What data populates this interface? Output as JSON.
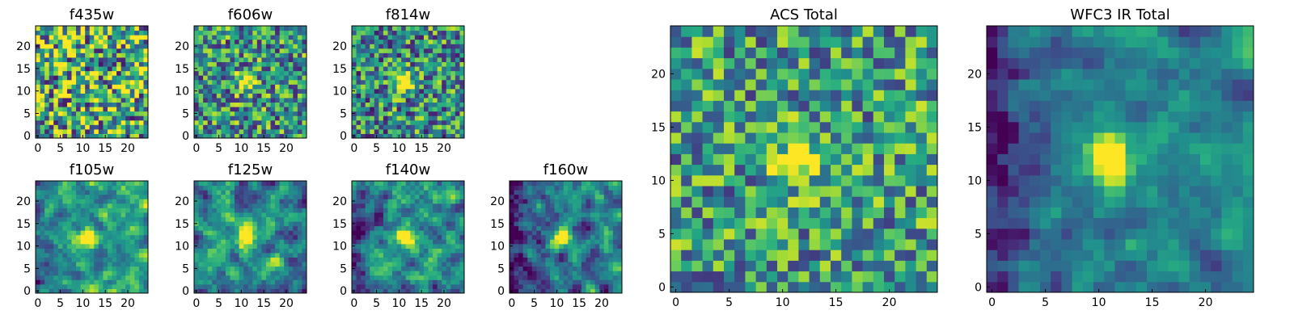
{
  "chart_data": [
    {
      "type": "heatmap",
      "title": "f435w",
      "colormap": "viridis",
      "grid": 25,
      "hotspot": 0.0,
      "noise": 0.55,
      "smooth": 0,
      "base": 0.62,
      "dark_left": 0.0,
      "seed": 11,
      "xticks": [
        "0",
        "5",
        "10",
        "15",
        "20"
      ],
      "yticks": [
        "0",
        "5",
        "10",
        "15",
        "20"
      ],
      "xlim": [
        0,
        25
      ],
      "ylim": [
        0,
        25
      ],
      "hotspot_center": [
        12,
        12
      ]
    },
    {
      "type": "heatmap",
      "title": "f606w",
      "colormap": "viridis",
      "grid": 25,
      "hotspot": 0.45,
      "noise": 0.42,
      "smooth": 0,
      "base": 0.52,
      "dark_left": 0.0,
      "seed": 23,
      "xticks": [
        "0",
        "5",
        "10",
        "15",
        "20"
      ],
      "yticks": [
        "0",
        "5",
        "10",
        "15",
        "20"
      ],
      "xlim": [
        0,
        25
      ],
      "ylim": [
        0,
        25
      ],
      "hotspot_center": [
        11,
        12
      ]
    },
    {
      "type": "heatmap",
      "title": "f814w",
      "colormap": "viridis",
      "grid": 25,
      "hotspot": 0.55,
      "noise": 0.42,
      "smooth": 0,
      "base": 0.5,
      "dark_left": 0.05,
      "seed": 37,
      "xticks": [
        "0",
        "5",
        "10",
        "15",
        "20"
      ],
      "yticks": [
        "0",
        "5",
        "10",
        "15",
        "20"
      ],
      "xlim": [
        0,
        25
      ],
      "ylim": [
        0,
        25
      ],
      "hotspot_center": [
        11,
        12
      ]
    },
    {
      "type": "heatmap",
      "title": "f105w",
      "colormap": "viridis",
      "grid": 25,
      "hotspot": 0.5,
      "noise": 0.3,
      "smooth": 1,
      "base": 0.55,
      "dark_left": 0.15,
      "seed": 41,
      "xticks": [
        "0",
        "5",
        "10",
        "15",
        "20"
      ],
      "yticks": [
        "0",
        "5",
        "10",
        "15",
        "20"
      ],
      "xlim": [
        0,
        25
      ],
      "ylim": [
        0,
        25
      ],
      "hotspot_center": [
        11,
        12
      ]
    },
    {
      "type": "heatmap",
      "title": "f125w",
      "colormap": "viridis",
      "grid": 25,
      "hotspot": 0.5,
      "noise": 0.32,
      "smooth": 1,
      "base": 0.5,
      "dark_left": 0.1,
      "seed": 53,
      "xticks": [
        "0",
        "5",
        "10",
        "15",
        "20"
      ],
      "yticks": [
        "0",
        "5",
        "10",
        "15",
        "20"
      ],
      "xlim": [
        0,
        25
      ],
      "ylim": [
        0,
        25
      ],
      "hotspot_center": [
        11,
        12
      ]
    },
    {
      "type": "heatmap",
      "title": "f140w",
      "colormap": "viridis",
      "grid": 25,
      "hotspot": 0.5,
      "noise": 0.32,
      "smooth": 1,
      "base": 0.5,
      "dark_left": 0.2,
      "seed": 67,
      "xticks": [
        "0",
        "5",
        "10",
        "15",
        "20"
      ],
      "yticks": [
        "0",
        "5",
        "10",
        "15",
        "20"
      ],
      "xlim": [
        0,
        25
      ],
      "ylim": [
        0,
        25
      ],
      "hotspot_center": [
        11,
        12
      ]
    },
    {
      "type": "heatmap",
      "title": "f160w",
      "colormap": "viridis",
      "grid": 25,
      "hotspot": 0.55,
      "noise": 0.32,
      "smooth": 1,
      "base": 0.42,
      "dark_left": 0.3,
      "seed": 79,
      "xticks": [
        "0",
        "5",
        "10",
        "15",
        "20"
      ],
      "yticks": [
        "0",
        "5",
        "10",
        "15",
        "20"
      ],
      "xlim": [
        0,
        25
      ],
      "ylim": [
        0,
        25
      ],
      "hotspot_center": [
        11,
        12
      ]
    },
    {
      "type": "heatmap",
      "title": "ACS Total",
      "colormap": "viridis",
      "grid": 25,
      "hotspot": 0.4,
      "noise": 0.38,
      "smooth": 0,
      "base": 0.55,
      "dark_left": 0.0,
      "seed": 97,
      "xticks": [
        "0",
        "5",
        "10",
        "15",
        "20"
      ],
      "yticks": [
        "0",
        "5",
        "10",
        "15",
        "20"
      ],
      "xlim": [
        0,
        25
      ],
      "ylim": [
        0,
        25
      ],
      "hotspot_center": [
        11.5,
        11.8
      ]
    },
    {
      "type": "heatmap",
      "title": "WFC3 IR Total",
      "colormap": "viridis",
      "grid": 25,
      "hotspot": 0.55,
      "noise": 0.22,
      "smooth": 1,
      "base": 0.45,
      "dark_left": 0.3,
      "seed": 113,
      "xticks": [
        "0",
        "5",
        "10",
        "15",
        "20"
      ],
      "yticks": [
        "0",
        "5",
        "10",
        "15",
        "20"
      ],
      "xlim": [
        0,
        25
      ],
      "ylim": [
        0,
        25
      ],
      "hotspot_center": [
        11,
        12
      ]
    }
  ]
}
